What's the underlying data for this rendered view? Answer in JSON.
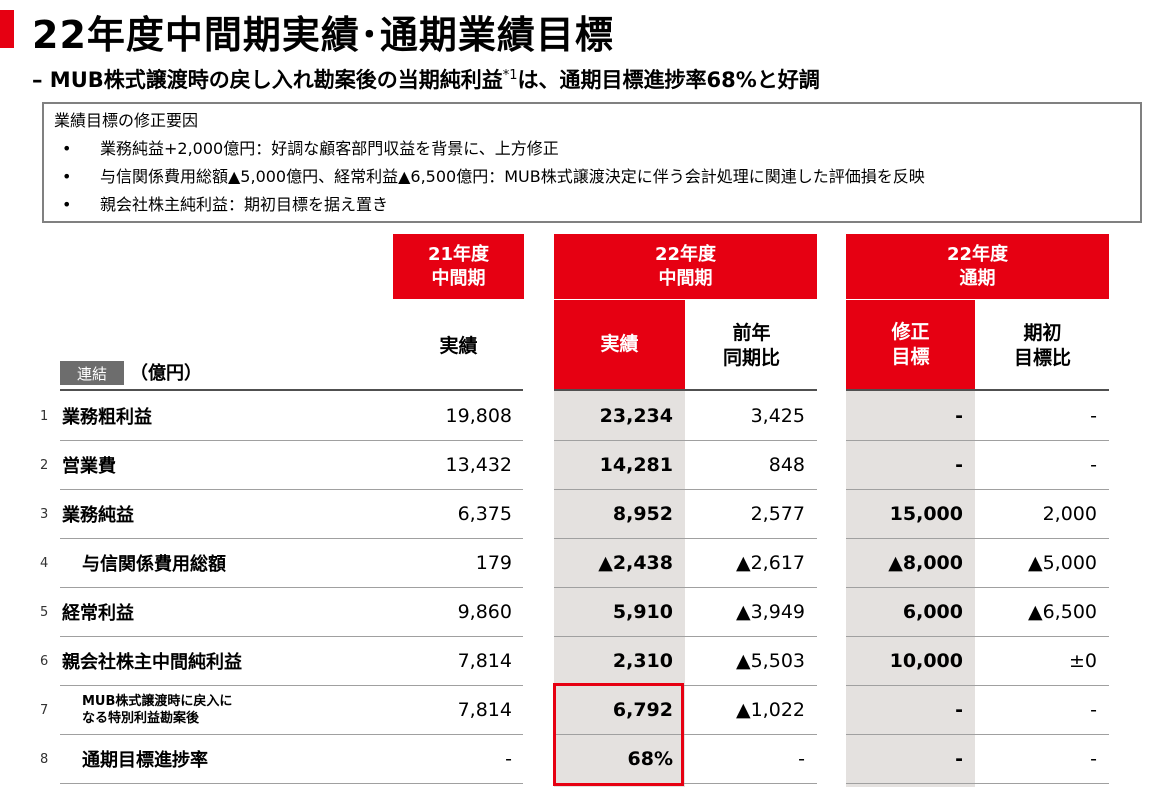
{
  "title": "22年度中間期実績･通期業績目標",
  "subtitle": {
    "prefix": "– MUB株式譲渡時の戻し入れ勘案後の当期純利益",
    "sup": "*1",
    "suffix": "は、通期目標進捗率68%と好調"
  },
  "factor_box": {
    "heading": "業績目標の修正要因",
    "bullets": [
      "業務純益+2,000億円：好調な顧客部門収益を背景に、上方修正",
      "与信関係費用総額▲5,000億円、経常利益▲6,500億円：MUB株式譲渡決定に伴う会計処理に関連した評価損を反映",
      "親会社株主純利益：期初目標を据え置き"
    ]
  },
  "table": {
    "group_headers": {
      "fy21_h1": "21年度\n中間期",
      "fy22_h1": "22年度\n中間期",
      "fy22_full": "22年度\n通期"
    },
    "sub_headers": {
      "fy21_actual": "実績",
      "fy22_actual": "実績",
      "fy22_yoy": "前年\n同期比",
      "fy22_revised": "修正\n目標",
      "fy22_vs_initial": "期初\n目標比"
    },
    "badge": "連結",
    "unit": "（億円）",
    "rows": [
      {
        "num": "1",
        "label": "業務粗利益",
        "c1": "19,808",
        "c2": "23,234",
        "c3": "3,425",
        "c4": "-",
        "c5": "-"
      },
      {
        "num": "2",
        "label": "営業費",
        "c1": "13,432",
        "c2": "14,281",
        "c3": "848",
        "c4": "-",
        "c5": "-"
      },
      {
        "num": "3",
        "label": "業務純益",
        "c1": "6,375",
        "c2": "8,952",
        "c3": "2,577",
        "c4": "15,000",
        "c5": "2,000"
      },
      {
        "num": "4",
        "label": "与信関係費用総額",
        "c1": "179",
        "c2": "▲2,438",
        "c3": "▲2,617",
        "c4": "▲8,000",
        "c5": "▲5,000"
      },
      {
        "num": "5",
        "label": "経常利益",
        "c1": "9,860",
        "c2": "5,910",
        "c3": "▲3,949",
        "c4": "6,000",
        "c5": "▲6,500"
      },
      {
        "num": "6",
        "label": "親会社株主中間純利益",
        "c1": "7,814",
        "c2": "2,310",
        "c3": "▲5,503",
        "c4": "10,000",
        "c5": "±0"
      },
      {
        "num": "7",
        "label": "MUB株式譲渡時に戻入に\nなる特別利益勘案後",
        "c1": "7,814",
        "c2": "6,792",
        "c3": "▲1,022",
        "c4": "-",
        "c5": "-"
      },
      {
        "num": "8",
        "label": "通期目標進捗率",
        "c1": "-",
        "c2": "68%",
        "c3": "-",
        "c4": "-",
        "c5": "-"
      }
    ]
  },
  "colors": {
    "accent": "#e60012",
    "shade": "#e4e1df",
    "badge": "#6d6d6d"
  }
}
